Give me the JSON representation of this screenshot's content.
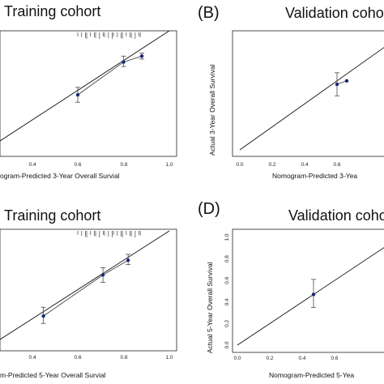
{
  "panels": [
    {
      "id": "A",
      "letter": "",
      "title": "Training cohort",
      "xlabel": "ogram-Predicted 3-Year Overall Survial",
      "ylabel": "",
      "xticks": [
        "0.4",
        "0.6",
        "0.8",
        "1.0"
      ],
      "yticks": []
    },
    {
      "id": "B",
      "letter": "(B)",
      "title": "Validation coho",
      "xlabel": "Nomogram-Predicted 3-Yea",
      "ylabel": "Actual 3-Year Overall Survival",
      "xticks": [
        "0.0",
        "0.2",
        "0.4",
        "0.6"
      ],
      "yticks": [
        "0.0",
        "0.2",
        "0.4",
        "0.6",
        "0.8",
        "1.0"
      ]
    },
    {
      "id": "C",
      "letter": "",
      "title": "Training cohort",
      "xlabel": "m-Predicted 5-Year Overall Survial",
      "ylabel": "",
      "xticks": [
        "0.4",
        "0.6",
        "0.8",
        "1.0"
      ],
      "yticks": []
    },
    {
      "id": "D",
      "letter": "(D)",
      "title": "Validation coho",
      "xlabel": "Nomogram-Predicted 5-Yea",
      "ylabel": "Actual 5-Year Overall Survival",
      "xticks": [
        "0.0",
        "0.2",
        "0.4",
        "0.6"
      ],
      "yticks": [
        "0.0",
        "0.2",
        "0.4",
        "0.6",
        "0.8",
        "1.0"
      ]
    }
  ],
  "chart_data": [
    {
      "type": "scatter",
      "panel": "A",
      "title": "Training cohort",
      "xlabel": "Nomogram-Predicted 3-Year Overall Survial",
      "xlim": [
        0.2,
        1.0
      ],
      "ylim": [
        0.2,
        1.0
      ],
      "points": [
        {
          "x": 0.6,
          "y": 0.57,
          "lo": 0.52,
          "hi": 0.62
        },
        {
          "x": 0.8,
          "y": 0.79,
          "lo": 0.76,
          "hi": 0.83
        },
        {
          "x": 0.88,
          "y": 0.83,
          "lo": 0.81,
          "hi": 0.85
        }
      ],
      "ideal_line": true,
      "rug": true
    },
    {
      "type": "scatter",
      "panel": "B",
      "title": "Validation coho",
      "xlabel": "Nomogram-Predicted 3-Yea",
      "ylabel": "Actual 3-Year Overall Survival",
      "xlim": [
        0.0,
        1.0
      ],
      "ylim": [
        0.0,
        1.0
      ],
      "points": [
        {
          "x": 0.6,
          "y": 0.57,
          "lo": 0.47,
          "hi": 0.67
        },
        {
          "x": 0.66,
          "y": 0.6,
          "lo": 0.6,
          "hi": 0.6
        }
      ],
      "ideal_line": true
    },
    {
      "type": "scatter",
      "panel": "C",
      "title": "Training cohort",
      "xlabel": "Nomogram-Predicted 5-Year Overall Survial",
      "xlim": [
        0.2,
        1.0
      ],
      "ylim": [
        0.2,
        1.0
      ],
      "points": [
        {
          "x": 0.45,
          "y": 0.42,
          "lo": 0.37,
          "hi": 0.48
        },
        {
          "x": 0.71,
          "y": 0.7,
          "lo": 0.65,
          "hi": 0.75
        },
        {
          "x": 0.82,
          "y": 0.8,
          "lo": 0.77,
          "hi": 0.84
        }
      ],
      "ideal_line": true,
      "rug": true
    },
    {
      "type": "scatter",
      "panel": "D",
      "title": "Validation coho",
      "xlabel": "Nomogram-Predicted 5-Yea",
      "ylabel": "Actual 5-Year Overall Survival",
      "xlim": [
        0.0,
        1.0
      ],
      "ylim": [
        0.0,
        1.0
      ],
      "points": [
        {
          "x": 0.47,
          "y": 0.47,
          "lo": 0.35,
          "hi": 0.61
        }
      ],
      "ideal_line": true
    }
  ]
}
